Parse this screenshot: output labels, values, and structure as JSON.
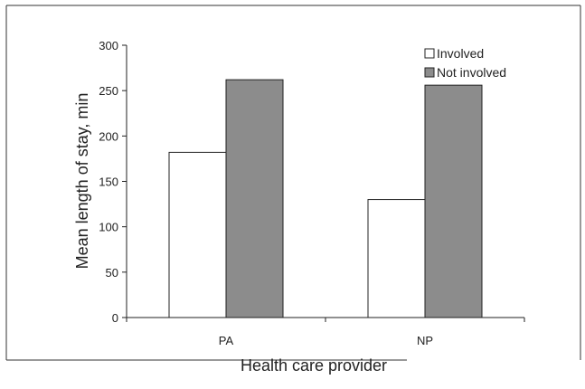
{
  "chart_data": {
    "type": "bar",
    "categories": [
      "PA",
      "NP"
    ],
    "series": [
      {
        "name": "Involved",
        "values": [
          182,
          130
        ],
        "color": "#ffffff"
      },
      {
        "name": "Not involved",
        "values": [
          262,
          256
        ],
        "color": "#8c8c8c"
      }
    ],
    "xlabel": "Health care provider",
    "ylabel": "Mean length of stay, min",
    "ylim": [
      0,
      300
    ],
    "yticks": [
      0,
      50,
      100,
      150,
      200,
      250,
      300
    ],
    "ytick_labels": [
      "0",
      "50",
      "100",
      "150",
      "200",
      "250",
      "300"
    ],
    "grid": false,
    "legend_position": "top-right"
  }
}
